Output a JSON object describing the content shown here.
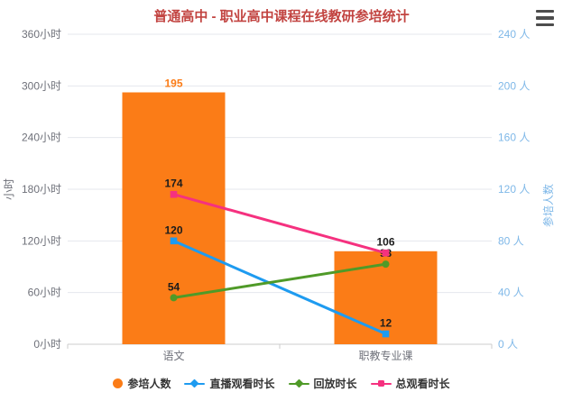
{
  "header": {
    "title": "普通高中 - 职业高中课程在线教研参培统计",
    "title_color": "#c24441",
    "toolbox_icon": "hamburger-menu-icon"
  },
  "chart_data": {
    "type": "bar+line",
    "title": "普通高中 - 职业高中课程在线教研参培统计",
    "categories": [
      "语文",
      "职教专业课"
    ],
    "series": [
      {
        "id": "participants",
        "name": "参培人数",
        "type": "bar",
        "y_axis": "right",
        "color": "#fb7c17",
        "values": [
          195,
          72
        ],
        "data_labels": [
          "195",
          ""
        ],
        "label_color": "#fb7c17"
      },
      {
        "id": "live-watch-duration",
        "name": "直播观看时长",
        "type": "line",
        "y_axis": "left",
        "color": "#1e9bf0",
        "marker": "square",
        "values": [
          120,
          12
        ],
        "data_labels": [
          "120",
          "12"
        ],
        "label_color": "#1c1c1c"
      },
      {
        "id": "replay-duration",
        "name": "回放时长",
        "type": "line",
        "y_axis": "left",
        "color": "#4f9a28",
        "marker": "circle",
        "values": [
          54,
          93
        ],
        "data_labels": [
          "54",
          "93"
        ],
        "label_color": "#1c1c1c"
      },
      {
        "id": "total-watch-duration",
        "name": "总观看时长",
        "type": "line",
        "y_axis": "left",
        "color": "#f5317f",
        "marker": "square",
        "values": [
          174,
          106
        ],
        "data_labels": [
          "174",
          "106"
        ],
        "label_color": "#1c1c1c"
      }
    ],
    "y_axis_left": {
      "name": "小时",
      "min": 0,
      "max": 360,
      "tick_labels": [
        "0小时",
        "60小时",
        "120小时",
        "180小时",
        "240小时",
        "300小时",
        "360小时"
      ],
      "color": "#6e7079"
    },
    "y_axis_right": {
      "name": "参培人数",
      "min": 0,
      "max": 240,
      "tick_labels": [
        "0 人",
        "40 人",
        "80 人",
        "120 人",
        "160 人",
        "200 人",
        "240 人"
      ],
      "color": "#7fb8e8"
    },
    "x_axis": {
      "label_color": "#6e7079",
      "line_color": "#cccccc"
    },
    "grid": true,
    "grid_color": "#e4e7ed",
    "legend": {
      "position": "bottom",
      "items": [
        {
          "id": "participants",
          "label": "参培人数",
          "color": "#fb7c17",
          "icon": "circle"
        },
        {
          "id": "live-watch-duration",
          "label": "直播观看时长",
          "color": "#1e9bf0",
          "icon": "line-diamond"
        },
        {
          "id": "replay-duration",
          "label": "回放时长",
          "color": "#4f9a28",
          "icon": "line-diamond"
        },
        {
          "id": "total-watch-duration",
          "label": "总观看时长",
          "color": "#f5317f",
          "icon": "line-square"
        }
      ]
    }
  }
}
